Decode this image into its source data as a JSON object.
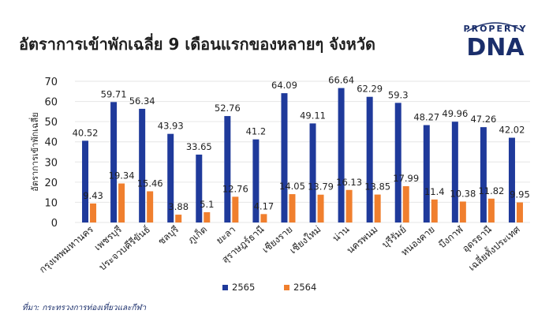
{
  "title": "อัตราการเข้าพักเฉลี่ย 9 เดือนแรกของหลายๆ จังหวัด",
  "logo": {
    "top": "PROPERTY",
    "main": "DNA"
  },
  "source": "ที่มา: กระทรวงการท่องเที่ยวและกีฬา",
  "colors": {
    "series_2565": "#1f3a9b",
    "series_2564": "#f07f2e",
    "axis_text": "#222222",
    "grid": "#e6e6e6"
  },
  "chart_data": {
    "type": "bar",
    "title": "อัตราการเข้าพักเฉลี่ย 9 เดือนแรกของหลายๆ จังหวัด",
    "ylabel": "อัตราการเข้าพักเฉลี่ย",
    "xlabel": "",
    "ylim": [
      0,
      70
    ],
    "yticks": [
      0,
      10,
      20,
      30,
      40,
      50,
      60,
      70
    ],
    "legend_position": "bottom",
    "categories": [
      "กรุงเทพมหานคร",
      "เพชรบุรี",
      "ประจวบคีรีขันธ์",
      "ชลบุรี",
      "ภูเก็ต",
      "ยะลา",
      "สุราษฎร์ธานี",
      "เชียงราย",
      "เชียงใหม่",
      "น่าน",
      "นครพนม",
      "บุรีรัมย์",
      "หนองคาย",
      "บึงกาฬ",
      "อุดรธานี",
      "เฉลี่ยทั้งประเทศ"
    ],
    "series": [
      {
        "name": "2565",
        "color": "#1f3a9b",
        "values": [
          40.52,
          59.71,
          56.34,
          43.93,
          33.65,
          52.76,
          41.2,
          64.09,
          49.11,
          66.64,
          62.29,
          59.3,
          48.27,
          49.96,
          47.26,
          42.02
        ]
      },
      {
        "name": "2564",
        "color": "#f07f2e",
        "values": [
          9.43,
          19.34,
          15.46,
          3.88,
          5.1,
          12.76,
          4.17,
          14.05,
          13.79,
          16.13,
          13.85,
          17.99,
          11.4,
          10.38,
          11.82,
          9.95
        ]
      }
    ]
  }
}
